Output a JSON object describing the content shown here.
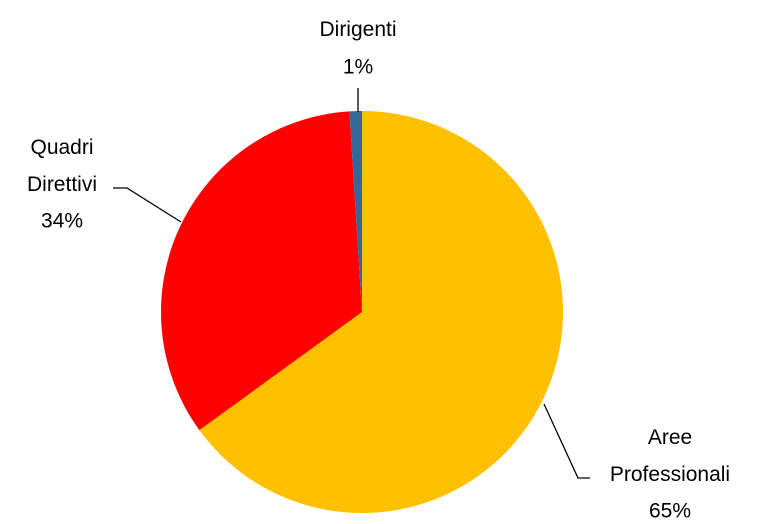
{
  "chart_data": {
    "type": "pie",
    "categories": [
      "Aree Professionali",
      "Quadri Direttivi",
      "Dirigenti"
    ],
    "values": [
      65,
      34,
      1
    ],
    "value_labels": [
      "65%",
      "34%",
      "1%"
    ],
    "colors": [
      "#FFC000",
      "#FF0000",
      "#34679A"
    ]
  }
}
